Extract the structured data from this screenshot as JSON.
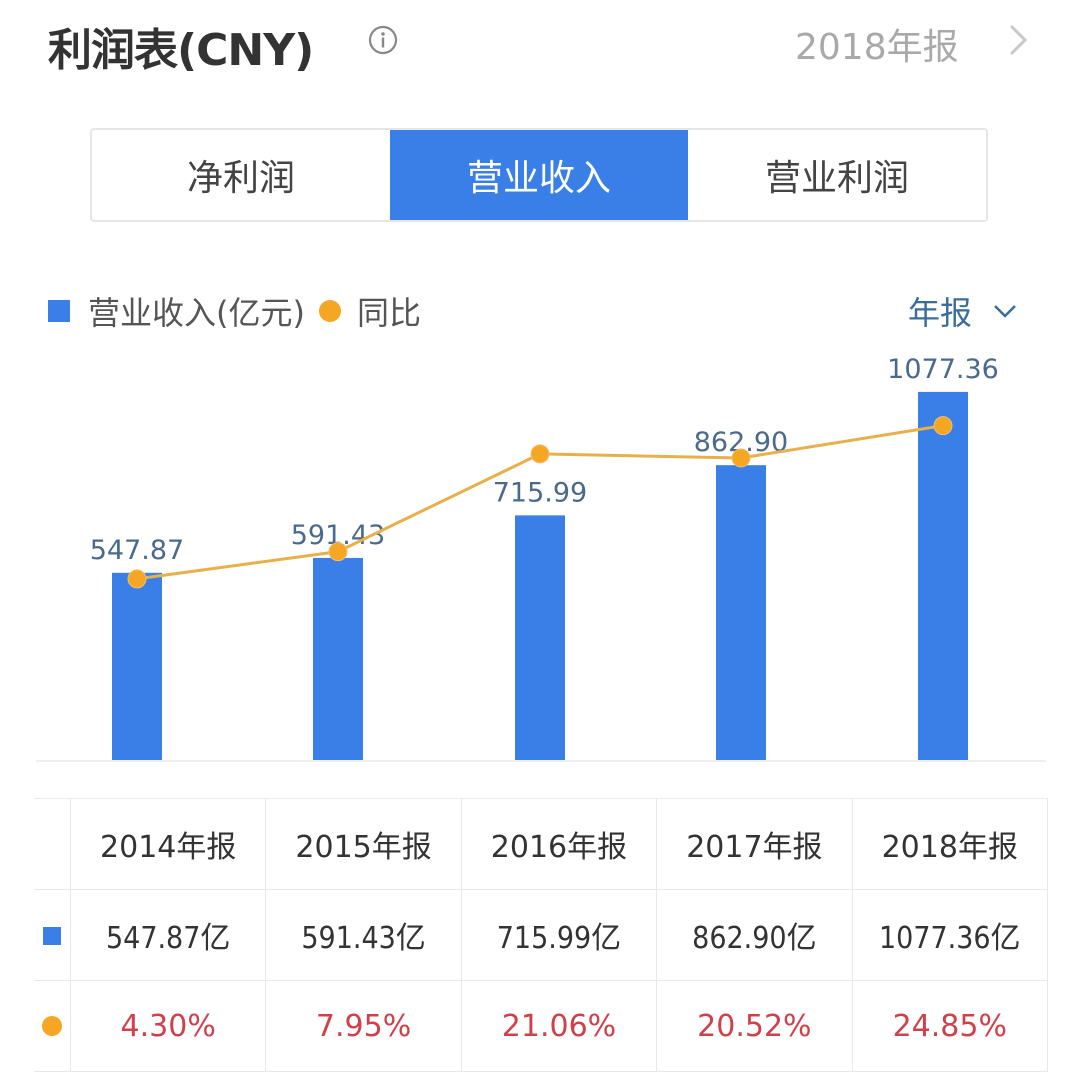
{
  "header": {
    "title": "利润表(CNY)",
    "info_icon": "info-icon",
    "period": "2018年报",
    "period_chevron": "chevron-right-icon"
  },
  "tabs": [
    {
      "label": "净利润",
      "active": false
    },
    {
      "label": "营业收入",
      "active": true
    },
    {
      "label": "营业利润",
      "active": false
    }
  ],
  "legend": {
    "bar_label": "营业收入(亿元)",
    "line_label": "同比"
  },
  "period_select": {
    "value": "年报",
    "icon": "chevron-down-icon"
  },
  "colors": {
    "accent": "#3a7fe8",
    "bar": "#3a7fe8",
    "line": "#f5a623",
    "label_text": "#4a6a8c",
    "pct_text": "#d0404a"
  },
  "chart_data": {
    "type": "bar",
    "title": "营业收入",
    "categories": [
      "2014年报",
      "2015年报",
      "2016年报",
      "2017年报",
      "2018年报"
    ],
    "series": [
      {
        "name": "营业收入(亿元)",
        "type": "bar",
        "values": [
          547.87,
          591.43,
          715.99,
          862.9,
          1077.36
        ],
        "labels": [
          "547.87",
          "591.43",
          "715.99",
          "862.90",
          "1077.36"
        ]
      },
      {
        "name": "同比",
        "type": "line",
        "values": [
          4.3,
          7.95,
          21.06,
          20.52,
          24.85
        ],
        "unit": "%"
      }
    ],
    "xlabel": "",
    "ylabel": "",
    "grid": false,
    "legend_position": "top-left",
    "bar_ylim": [
      0,
      1200
    ],
    "line_ylim": [
      -20,
      35
    ]
  },
  "table": {
    "headers": [
      "2014年报",
      "2015年报",
      "2016年报",
      "2017年报",
      "2018年报"
    ],
    "amounts": [
      "547.87亿",
      "591.43亿",
      "715.99亿",
      "862.90亿",
      "1077.36亿"
    ],
    "growth": [
      "4.30%",
      "7.95%",
      "21.06%",
      "20.52%",
      "24.85%"
    ]
  }
}
